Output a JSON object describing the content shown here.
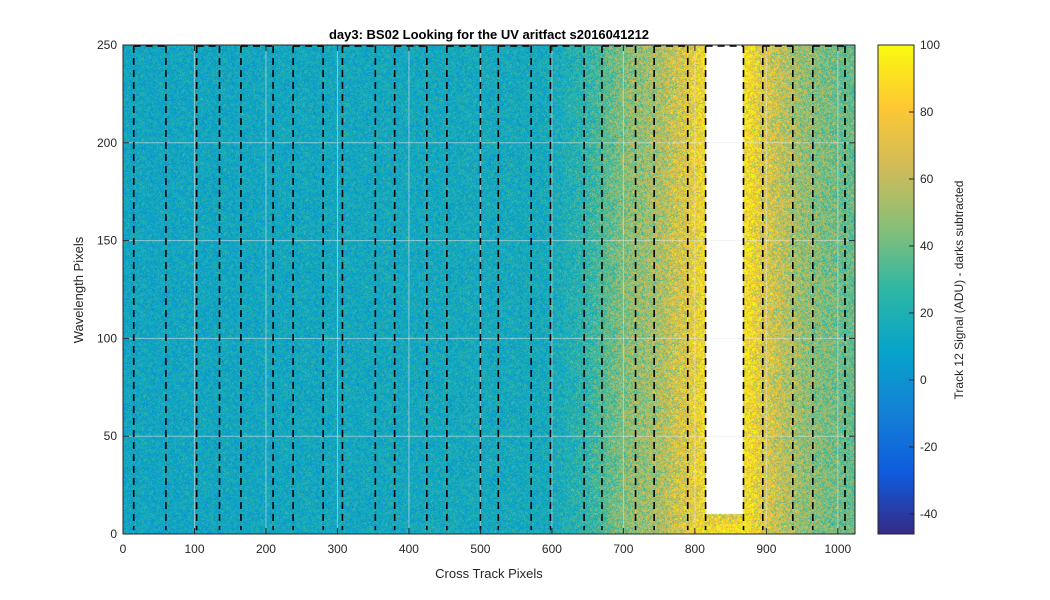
{
  "chart_data": {
    "type": "heatmap",
    "title": "day3: BS02  Looking for the UV aritfact  s2016041212",
    "xlabel": "Cross Track Pixels",
    "ylabel": "Wavelength Pixels",
    "xlim": [
      0,
      1024
    ],
    "ylim": [
      0,
      250
    ],
    "x_ticks": [
      0,
      100,
      200,
      300,
      400,
      500,
      600,
      700,
      800,
      900,
      1000
    ],
    "y_ticks": [
      0,
      50,
      100,
      150,
      200,
      250
    ],
    "grid": true,
    "colormap": "parula",
    "colorbar": {
      "label": "Track 12 Signal (ADU) - darks subtracted",
      "range": [
        -46,
        100
      ],
      "ticks": [
        -40,
        -20,
        0,
        20,
        40,
        60,
        80,
        100
      ]
    },
    "signal_profile": {
      "description_unit": "ADU",
      "baseline": 12,
      "x": [
        0,
        600,
        650,
        700,
        750,
        790,
        805,
        812,
        870,
        880,
        900,
        950,
        1000,
        1024
      ],
      "values": [
        12,
        15,
        25,
        45,
        55,
        72,
        80,
        85,
        90,
        82,
        70,
        50,
        40,
        38
      ]
    },
    "masked_region": {
      "x_range": [
        815,
        868
      ],
      "y_range": [
        10,
        250
      ],
      "bottom_band_y": [
        5,
        10
      ]
    },
    "dashed_box_x": [
      15,
      60,
      103,
      135,
      165,
      210,
      238,
      280,
      307,
      353,
      380,
      425,
      453,
      500,
      525,
      571,
      598,
      645,
      670,
      717,
      743,
      790,
      815,
      868,
      895,
      937,
      965,
      1010
    ],
    "dashed_box_y_top": 250,
    "dashed_box_y_bottom": 2,
    "colors": {
      "axis": "#262626",
      "grid": "#e6e6e6",
      "dashed_line": "#000000",
      "background": "#ffffff"
    }
  }
}
